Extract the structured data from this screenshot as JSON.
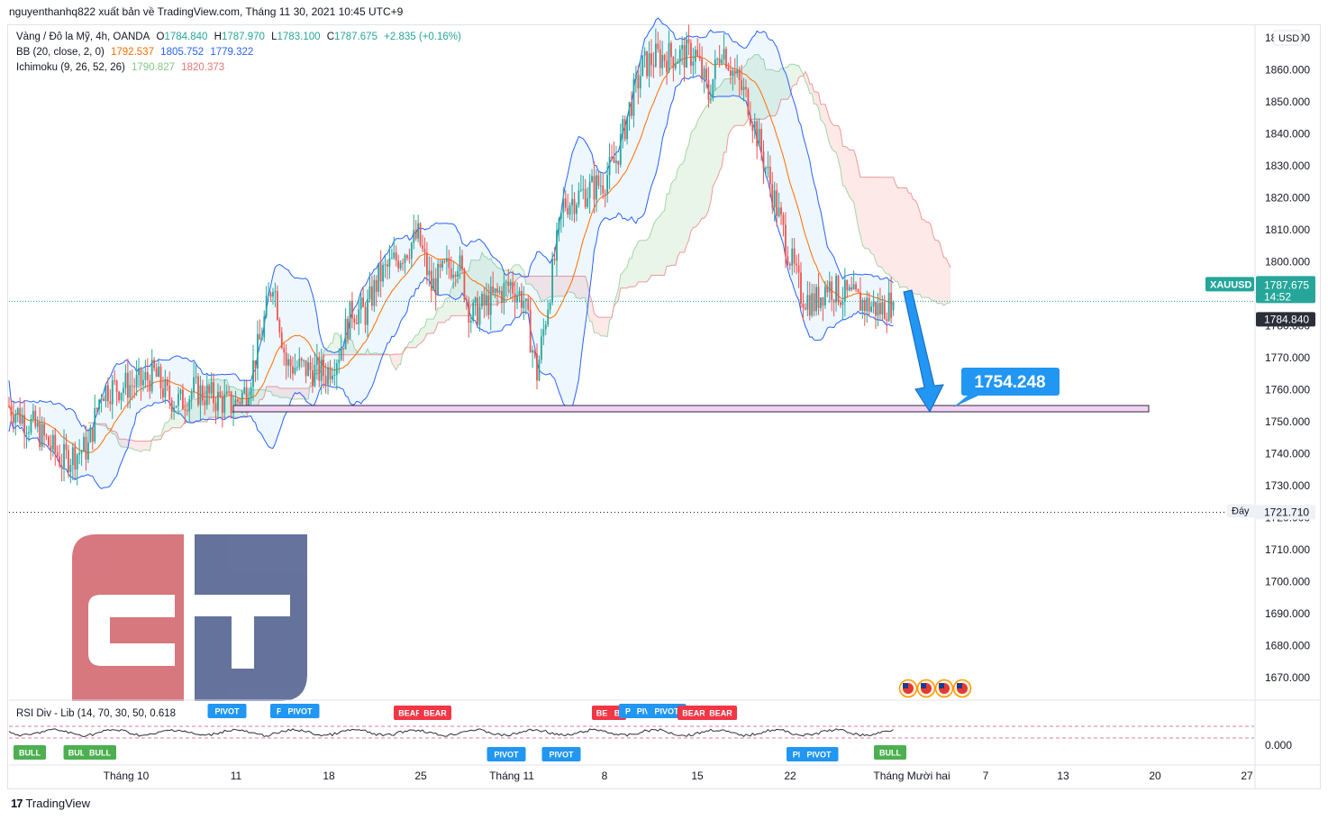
{
  "header": "nguyenthanhq822 xuất bản về TradingView.com, Tháng 11 30, 2021 10:45 UTC+9",
  "legend": {
    "main": {
      "name": "Vàng / Đô la Mỹ, 4h, OANDA",
      "o_label": "O",
      "o": "1784.840",
      "h_label": "H",
      "h": "1787.970",
      "l_label": "L",
      "l": "1783.100",
      "c_label": "C",
      "c": "1787.675",
      "chg": "+2.835 (+0.16%)"
    },
    "bb": {
      "name": "BB (20, close, 2, 0)",
      "basis": "1792.537",
      "upper": "1805.752",
      "lower": "1779.322"
    },
    "ichimoku": {
      "name": "Ichimoku (9, 26, 52, 26)",
      "a": "1790.827",
      "b": "1820.373"
    }
  },
  "rsi_legend": "RSI Div - Lib (14, 70, 30, 50, 0.618",
  "currency": "USD",
  "symbol_tag": "XAUUSD",
  "last_price": "1787.675",
  "countdown": "14:52",
  "open_price": "1784.840",
  "low_tag": {
    "label": "Đáy",
    "value": "1721.710"
  },
  "target": {
    "label": "1754.248"
  },
  "y_ticks": [
    "1870.000",
    "1860.000",
    "1850.000",
    "1840.000",
    "1830.000",
    "1820.000",
    "1810.000",
    "1800.000",
    "1790.000",
    "1780.000",
    "1770.000",
    "1760.000",
    "1750.000",
    "1740.000",
    "1730.000",
    "1720.000",
    "1710.000",
    "1700.000",
    "1690.000",
    "1680.000",
    "1670.000"
  ],
  "rsi_tick": "0.000",
  "x_ticks": [
    "Tháng 10",
    "11",
    "18",
    "25",
    "Tháng 11",
    "8",
    "15",
    "22",
    "Tháng Mười hai",
    "7",
    "13",
    "20",
    "27"
  ],
  "rsi_labels": [
    {
      "t": "BULL",
      "type": "bull"
    },
    {
      "t": "BUL",
      "type": "bull"
    },
    {
      "t": "BULL",
      "type": "bull"
    },
    {
      "t": "PIVOT",
      "type": "pivot"
    },
    {
      "t": "P",
      "type": "pivot"
    },
    {
      "t": "PIVOT",
      "type": "pivot"
    },
    {
      "t": "BEAR",
      "type": "bear"
    },
    {
      "t": "BEAR",
      "type": "bear"
    },
    {
      "t": "PIVOT",
      "type": "pivot"
    },
    {
      "t": "PIVOT",
      "type": "pivot"
    },
    {
      "t": "BE",
      "type": "bear"
    },
    {
      "t": "B",
      "type": "bear"
    },
    {
      "t": "P",
      "type": "pivot"
    },
    {
      "t": "PIV",
      "type": "pivot"
    },
    {
      "t": "PIVOT",
      "type": "pivot"
    },
    {
      "t": "BEAR",
      "type": "bear"
    },
    {
      "t": "BEAR",
      "type": "bear"
    },
    {
      "t": "PI",
      "type": "pivot"
    },
    {
      "t": "PIVOT",
      "type": "pivot"
    },
    {
      "t": "BULL",
      "type": "bull"
    }
  ],
  "footer": "TradingView",
  "logo_letters": "CT",
  "colors": {
    "up": "#26a69a",
    "down": "#ef5350",
    "bb": "#2962ff",
    "basis": "#ff6d00",
    "accent": "#2196f3",
    "bull": "#4caf50",
    "bear": "#f23645"
  },
  "chart_data": {
    "type": "candlestick",
    "symbol": "XAUUSD",
    "timeframe": "4h",
    "ylim": [
      1663,
      1875
    ],
    "x_start": "2021-09-24",
    "x_end": "2021-12-27",
    "horizontal_levels": [
      {
        "label": "Đáy",
        "value": 1721.71
      },
      {
        "label": "1754.248",
        "value": 1754.248
      },
      {
        "label": "1787.675",
        "value": 1787.675
      }
    ],
    "close_path": [
      [
        "2021-09-24",
        1755
      ],
      [
        "2021-09-26",
        1748
      ],
      [
        "2021-09-28",
        1738
      ],
      [
        "2021-09-30",
        1742
      ],
      [
        "2021-10-01",
        1760
      ],
      [
        "2021-10-04",
        1762
      ],
      [
        "2021-10-05",
        1765
      ],
      [
        "2021-10-06",
        1758
      ],
      [
        "2021-10-07",
        1756
      ],
      [
        "2021-10-08",
        1760
      ],
      [
        "2021-10-11",
        1755
      ],
      [
        "2021-10-12",
        1760
      ],
      [
        "2021-10-13",
        1775
      ],
      [
        "2021-10-14",
        1795
      ],
      [
        "2021-10-15",
        1768
      ],
      [
        "2021-10-18",
        1765
      ],
      [
        "2021-10-19",
        1772
      ],
      [
        "2021-10-20",
        1785
      ],
      [
        "2021-10-21",
        1784
      ],
      [
        "2021-10-22",
        1795
      ],
      [
        "2021-10-25",
        1808
      ],
      [
        "2021-10-26",
        1792
      ],
      [
        "2021-10-27",
        1797
      ],
      [
        "2021-10-28",
        1801
      ],
      [
        "2021-10-29",
        1783
      ],
      [
        "2021-11-01",
        1793
      ],
      [
        "2021-11-02",
        1788
      ],
      [
        "2021-11-03",
        1765
      ],
      [
        "2021-11-04",
        1792
      ],
      [
        "2021-11-05",
        1818
      ],
      [
        "2021-11-08",
        1825
      ],
      [
        "2021-11-09",
        1832
      ],
      [
        "2021-11-10",
        1848
      ],
      [
        "2021-11-11",
        1861
      ],
      [
        "2021-11-12",
        1864
      ],
      [
        "2021-11-15",
        1865
      ],
      [
        "2021-11-16",
        1852
      ],
      [
        "2021-11-17",
        1868
      ],
      [
        "2021-11-18",
        1858
      ],
      [
        "2021-11-19",
        1850
      ],
      [
        "2021-11-22",
        1804
      ],
      [
        "2021-11-23",
        1790
      ],
      [
        "2021-11-24",
        1787
      ],
      [
        "2021-11-25",
        1793
      ],
      [
        "2021-11-26",
        1790
      ],
      [
        "2021-11-29",
        1785
      ],
      [
        "2021-11-30",
        1787.675
      ]
    ]
  }
}
